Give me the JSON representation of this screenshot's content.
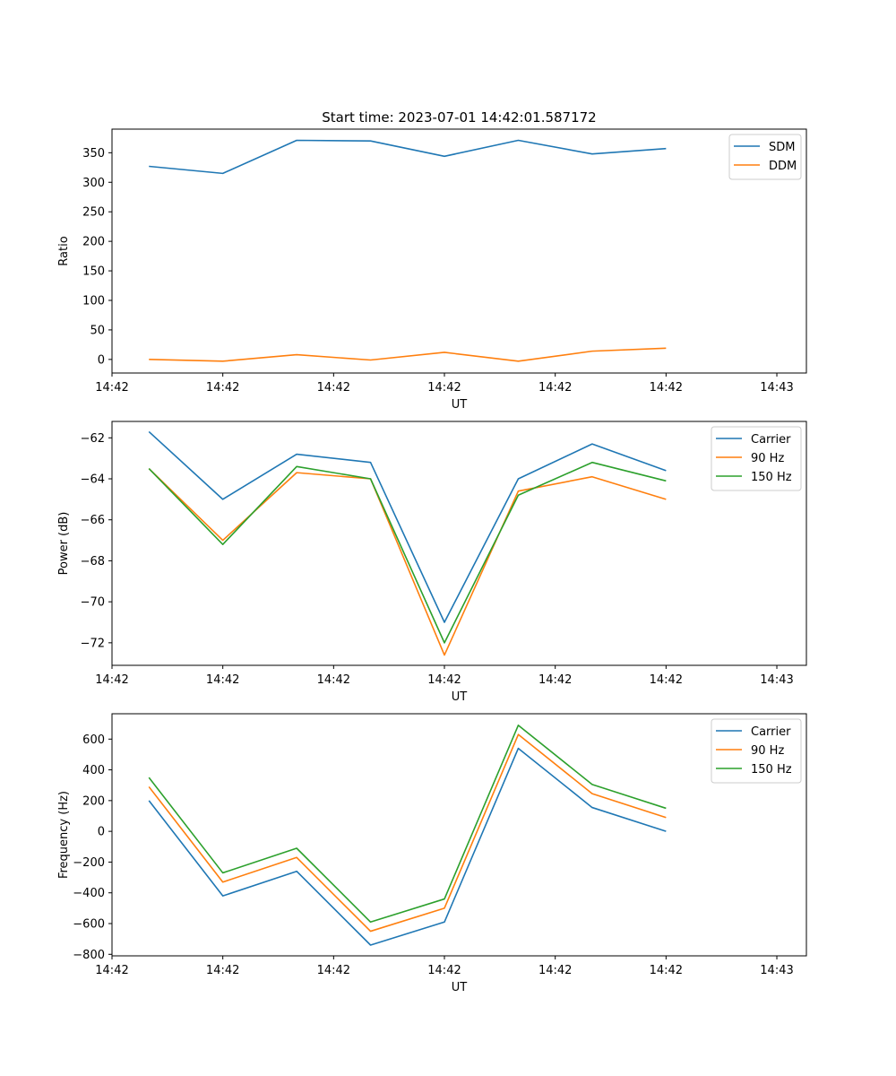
{
  "colors": {
    "blue": "#1f77b4",
    "orange": "#ff7f0e",
    "green": "#2ca02c"
  },
  "chart_data": [
    {
      "type": "line",
      "title": "Start time: 2023-07-01 14:42:01.587172",
      "xlabel": "UT",
      "ylabel": "Ratio",
      "x": [
        1,
        2,
        3,
        4,
        5,
        6,
        7,
        8
      ],
      "xlim": [
        0.5,
        9.9
      ],
      "xticks": [
        0.5,
        2.0,
        3.5,
        5.0,
        6.5,
        8.0,
        9.5
      ],
      "xtick_labels": [
        "14:42",
        "14:42",
        "14:42",
        "14:42",
        "14:42",
        "14:42",
        "14:43"
      ],
      "ylim": [
        -23,
        390
      ],
      "yticks": [
        0,
        50,
        100,
        150,
        200,
        250,
        300,
        350
      ],
      "ytick_labels": [
        "0",
        "50",
        "100",
        "150",
        "200",
        "250",
        "300",
        "350"
      ],
      "legend_position": "top-right",
      "series": [
        {
          "name": "SDM",
          "color": "#1f77b4",
          "values": [
            327,
            315,
            371,
            370,
            344,
            371,
            348,
            357
          ]
        },
        {
          "name": "DDM",
          "color": "#ff7f0e",
          "values": [
            0,
            -3,
            8,
            -1,
            12,
            -3,
            14,
            19
          ]
        }
      ]
    },
    {
      "type": "line",
      "title": "",
      "xlabel": "UT",
      "ylabel": "Power (dB)",
      "x": [
        1,
        2,
        3,
        4,
        5,
        6,
        7,
        8
      ],
      "xlim": [
        0.5,
        9.9
      ],
      "xticks": [
        0.5,
        2.0,
        3.5,
        5.0,
        6.5,
        8.0,
        9.5
      ],
      "xtick_labels": [
        "14:42",
        "14:42",
        "14:42",
        "14:42",
        "14:42",
        "14:42",
        "14:43"
      ],
      "ylim": [
        -73.1,
        -61.2
      ],
      "yticks": [
        -72,
        -70,
        -68,
        -66,
        -64,
        -62
      ],
      "ytick_labels": [
        "−72",
        "−70",
        "−68",
        "−66",
        "−64",
        "−62"
      ],
      "legend_position": "top-right",
      "series": [
        {
          "name": "Carrier",
          "color": "#1f77b4",
          "values": [
            -61.7,
            -65.0,
            -62.8,
            -63.2,
            -71.0,
            -64.0,
            -62.3,
            -63.6
          ]
        },
        {
          "name": "90 Hz",
          "color": "#ff7f0e",
          "values": [
            -63.5,
            -67.0,
            -63.7,
            -64.0,
            -72.6,
            -64.6,
            -63.9,
            -65.0
          ]
        },
        {
          "name": "150 Hz",
          "color": "#2ca02c",
          "values": [
            -63.5,
            -67.2,
            -63.4,
            -64.0,
            -72.0,
            -64.8,
            -63.2,
            -64.1
          ]
        }
      ]
    },
    {
      "type": "line",
      "title": "",
      "xlabel": "UT",
      "ylabel": "Frequency (Hz)",
      "x": [
        1,
        2,
        3,
        4,
        5,
        6,
        7,
        8
      ],
      "xlim": [
        0.5,
        9.9
      ],
      "xticks": [
        0.5,
        2.0,
        3.5,
        5.0,
        6.5,
        8.0,
        9.5
      ],
      "xtick_labels": [
        "14:42",
        "14:42",
        "14:42",
        "14:42",
        "14:42",
        "14:42",
        "14:43"
      ],
      "ylim": [
        -810,
        765
      ],
      "yticks": [
        -800,
        -600,
        -400,
        -200,
        0,
        200,
        400,
        600
      ],
      "ytick_labels": [
        "−800",
        "−600",
        "−400",
        "−200",
        "0",
        "200",
        "400",
        "600"
      ],
      "legend_position": "top-right",
      "series": [
        {
          "name": "Carrier",
          "color": "#1f77b4",
          "values": [
            200,
            -420,
            -260,
            -740,
            -590,
            540,
            155,
            0
          ]
        },
        {
          "name": "90 Hz",
          "color": "#ff7f0e",
          "values": [
            290,
            -330,
            -170,
            -650,
            -500,
            630,
            245,
            90
          ]
        },
        {
          "name": "150 Hz",
          "color": "#2ca02c",
          "values": [
            350,
            -270,
            -110,
            -590,
            -440,
            690,
            305,
            150
          ]
        }
      ]
    }
  ]
}
